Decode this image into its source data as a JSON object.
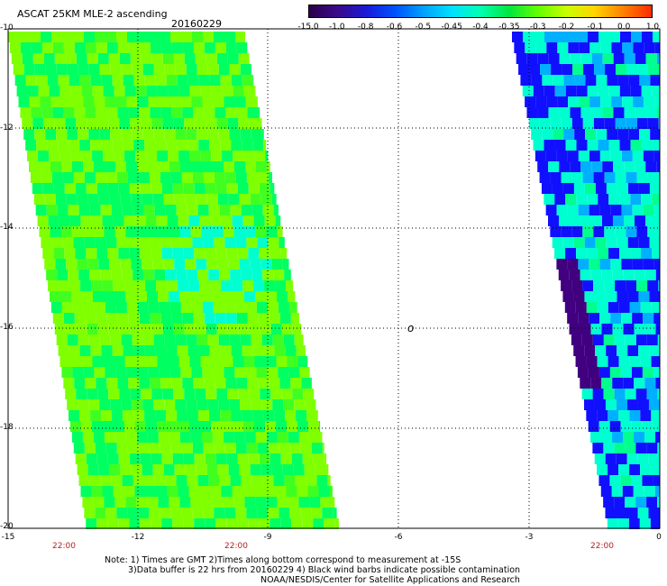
{
  "header": {
    "title": "ASCAT 25KM MLE-2 ascending",
    "date": "20160229"
  },
  "colorbar": {
    "ticks": [
      "-15.0",
      "-1.0",
      "-0.8",
      "-0.6",
      "-0.5",
      "-0.45",
      "-0.4",
      "-0.35",
      "-0.3",
      "-0.2",
      "-0.1",
      "0.0",
      "1.0"
    ],
    "colors": [
      "#2a004a",
      "#3a0a8a",
      "#1a1ad8",
      "#0050ff",
      "#00a0ff",
      "#00e0ff",
      "#00ffb0",
      "#00e640",
      "#60ff00",
      "#c8ff00",
      "#ffd400",
      "#ff8000",
      "#ff2a00"
    ]
  },
  "axes": {
    "lat_labels": [
      "-10",
      "-12",
      "-14",
      "-16",
      "-18",
      "-20"
    ],
    "lon_labels": [
      "-15",
      "-12",
      "-9",
      "-6",
      "-3",
      "0"
    ],
    "time_labels": [
      "22:00",
      "22:00",
      "22:00"
    ]
  },
  "annotation": "o",
  "notes": {
    "line1": "Note: 1) Times are GMT 2)Times along bottom correspond to measurement at -15S",
    "line2": "3)Data buffer is 22 hrs from 20160229 4) Black wind barbs indicate possible contamination",
    "line3": "NOAA/NESDIS/Center for Satellite Applications and Research"
  },
  "swaths": {
    "left": {
      "dominant_color": "#80ff00",
      "secondary_color": "#00ff60",
      "accent_color": "#00ffd0"
    },
    "right": {
      "dominant_color": "#00ffd0",
      "secondary_color": "#1010ff",
      "accent_color": "#400080"
    }
  }
}
